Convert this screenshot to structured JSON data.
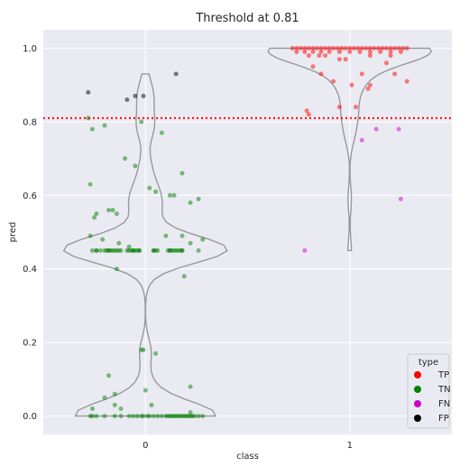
{
  "chart_data": {
    "type": "scatter",
    "title": "Threshold at 0.81",
    "xlabel": "class",
    "ylabel": "pred",
    "categories": [
      "0",
      "1"
    ],
    "xlim": [
      -0.5,
      1.5
    ],
    "ylim": [
      -0.05,
      1.05
    ],
    "yticks": [
      "0.0",
      "0.2",
      "0.4",
      "0.6",
      "0.8",
      "1.0"
    ],
    "grid": true,
    "threshold": {
      "value": 0.81,
      "color": "#ff0000",
      "style": "dotted"
    },
    "legend": {
      "title": "type",
      "placement": "lower-right",
      "entries": [
        {
          "label": "TP",
          "color": "#ff0000"
        },
        {
          "label": "TN",
          "color": "#008000"
        },
        {
          "label": "FN",
          "color": "#cc00cc"
        },
        {
          "label": "FP",
          "color": "#000000"
        }
      ]
    },
    "series": [
      {
        "type_key": "TN",
        "class": "0",
        "x": [
          -0.28,
          -0.26,
          -0.27,
          -0.25,
          -0.24,
          -0.2,
          -0.18,
          -0.16,
          -0.14,
          -0.1,
          -0.05,
          -0.02,
          0.02,
          0.05,
          0.08,
          0.12,
          0.14,
          0.18,
          0.22,
          0.26,
          -0.27,
          -0.21,
          -0.13,
          -0.08,
          0.1,
          0.18,
          0.22,
          0.28,
          -0.24,
          -0.18,
          -0.12,
          -0.06,
          -0.03,
          0.04,
          0.12,
          0.18,
          -0.26,
          -0.24,
          -0.22,
          -0.2,
          -0.19,
          -0.18,
          -0.17,
          -0.16,
          -0.15,
          -0.14,
          -0.13,
          -0.09,
          -0.08,
          -0.07,
          -0.06,
          -0.05,
          -0.04,
          -0.03,
          0.04,
          0.05,
          0.06,
          0.11,
          0.12,
          0.13,
          0.14,
          0.15,
          0.16,
          0.17,
          0.18,
          0.26,
          -0.14,
          0.19,
          -0.02,
          -0.01,
          0.05,
          -0.18,
          0.22,
          -0.15,
          0.0,
          -0.2,
          -0.26,
          -0.15,
          -0.12,
          0.22,
          0.03,
          -0.27,
          -0.26,
          -0.24,
          -0.2,
          -0.15,
          -0.12,
          -0.08,
          -0.06,
          -0.04,
          -0.02,
          -0.01,
          0.01,
          0.02,
          0.04,
          0.06,
          0.08,
          0.1,
          0.11,
          0.12,
          0.13,
          0.14,
          0.15,
          0.16,
          0.17,
          0.18,
          0.19,
          0.2,
          0.21,
          0.22,
          0.23,
          0.24,
          0.26,
          0.28
        ],
        "y": [
          0.81,
          0.78,
          0.63,
          0.54,
          0.55,
          0.79,
          0.56,
          0.56,
          0.55,
          0.7,
          0.68,
          0.8,
          0.62,
          0.61,
          0.77,
          0.6,
          0.6,
          0.66,
          0.58,
          0.59,
          0.49,
          0.48,
          0.47,
          0.46,
          0.49,
          0.49,
          0.47,
          0.48,
          0.45,
          0.45,
          0.45,
          0.45,
          0.45,
          0.45,
          0.45,
          0.45,
          0.45,
          0.45,
          0.45,
          0.45,
          0.45,
          0.45,
          0.45,
          0.45,
          0.45,
          0.45,
          0.45,
          0.45,
          0.45,
          0.45,
          0.45,
          0.45,
          0.45,
          0.45,
          0.45,
          0.45,
          0.45,
          0.45,
          0.45,
          0.45,
          0.45,
          0.45,
          0.45,
          0.45,
          0.45,
          0.45,
          0.4,
          0.38,
          0.18,
          0.18,
          0.17,
          0.11,
          0.08,
          0.06,
          0.07,
          0.05,
          0.02,
          0.03,
          0.02,
          0.01,
          0.03,
          0.0,
          0.0,
          0.0,
          0.0,
          0.0,
          0.0,
          0.0,
          0.0,
          0.0,
          0.0,
          0.0,
          0.0,
          0.0,
          0.0,
          0.0,
          0.0,
          0.0,
          0.0,
          0.0,
          0.0,
          0.0,
          0.0,
          0.0,
          0.0,
          0.0,
          0.0,
          0.0,
          0.0,
          0.0,
          0.0,
          0.0,
          0.0,
          0.0
        ]
      },
      {
        "type_key": "FP",
        "class": "0",
        "x": [
          -0.28,
          -0.09,
          -0.05,
          -0.01,
          0.15
        ],
        "y": [
          0.88,
          0.86,
          0.87,
          0.87,
          0.93
        ]
      },
      {
        "type_key": "TP",
        "class": "1",
        "x": [
          0.72,
          0.74,
          0.76,
          0.78,
          0.8,
          0.82,
          0.84,
          0.86,
          0.88,
          0.9,
          0.92,
          0.94,
          0.96,
          0.98,
          1.0,
          1.02,
          1.04,
          1.06,
          1.08,
          1.1,
          1.12,
          1.14,
          1.16,
          1.18,
          1.2,
          1.22,
          1.24,
          1.26,
          1.28,
          0.74,
          0.78,
          0.82,
          0.86,
          0.9,
          0.95,
          1.0,
          1.05,
          1.1,
          1.15,
          1.2,
          1.25,
          0.8,
          0.85,
          0.88,
          0.95,
          0.98,
          1.1,
          1.2,
          0.82,
          0.86,
          0.92,
          1.06,
          1.18,
          1.22,
          1.28,
          1.01,
          1.1,
          1.09,
          0.79,
          0.8,
          0.95,
          1.03
        ],
        "y": [
          1.0,
          1.0,
          1.0,
          1.0,
          1.0,
          1.0,
          1.0,
          1.0,
          1.0,
          1.0,
          1.0,
          1.0,
          1.0,
          1.0,
          1.0,
          1.0,
          1.0,
          1.0,
          1.0,
          1.0,
          1.0,
          1.0,
          1.0,
          1.0,
          1.0,
          1.0,
          1.0,
          1.0,
          1.0,
          0.99,
          0.99,
          0.99,
          0.99,
          0.99,
          0.99,
          0.99,
          0.99,
          0.99,
          0.99,
          0.99,
          0.99,
          0.98,
          0.98,
          0.98,
          0.97,
          0.97,
          0.98,
          0.98,
          0.95,
          0.93,
          0.91,
          0.93,
          0.96,
          0.93,
          0.91,
          0.9,
          0.9,
          0.89,
          0.83,
          0.82,
          0.84,
          0.84
        ]
      },
      {
        "type_key": "FN",
        "class": "1",
        "x": [
          0.78,
          1.06,
          1.13,
          1.24,
          1.25
        ],
        "y": [
          0.45,
          0.75,
          0.78,
          0.78,
          0.59
        ]
      }
    ],
    "violins": [
      {
        "class": "0",
        "range": [
          0.0,
          0.93
        ]
      },
      {
        "class": "1",
        "range": [
          0.45,
          1.0
        ]
      }
    ]
  }
}
